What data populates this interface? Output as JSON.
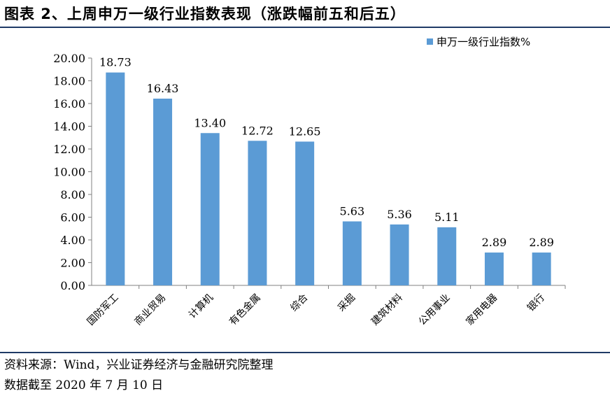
{
  "header": {
    "title": "图表 2、上周申万一级行业指数表现（涨跌幅前五和后五）"
  },
  "footer": {
    "source": "资料来源：Wind，兴业证券经济与金融研究院整理",
    "date": "数据截至 2020 年 7 月 10 日"
  },
  "chart_data": {
    "type": "bar",
    "categories": [
      "国防军工",
      "商业贸易",
      "计算机",
      "有色金属",
      "综合",
      "采掘",
      "建筑材料",
      "公用事业",
      "家用电器",
      "银行"
    ],
    "series": [
      {
        "name": "申万一级行业指数%",
        "values": [
          18.73,
          16.43,
          13.4,
          12.72,
          12.65,
          5.63,
          5.36,
          5.11,
          2.89,
          2.89
        ]
      }
    ],
    "data_labels": [
      "18.73",
      "16.43",
      "13.40",
      "12.72",
      "12.65",
      "5.63",
      "5.36",
      "5.11",
      "2.89",
      "2.89"
    ],
    "ylim": [
      0,
      20
    ],
    "yticks": [
      "0.00",
      "2.00",
      "4.00",
      "6.00",
      "8.00",
      "10.00",
      "12.00",
      "14.00",
      "16.00",
      "18.00",
      "20.00"
    ],
    "grid": false,
    "legend_position": "top-right",
    "bar_color": "#5b9bd5"
  }
}
